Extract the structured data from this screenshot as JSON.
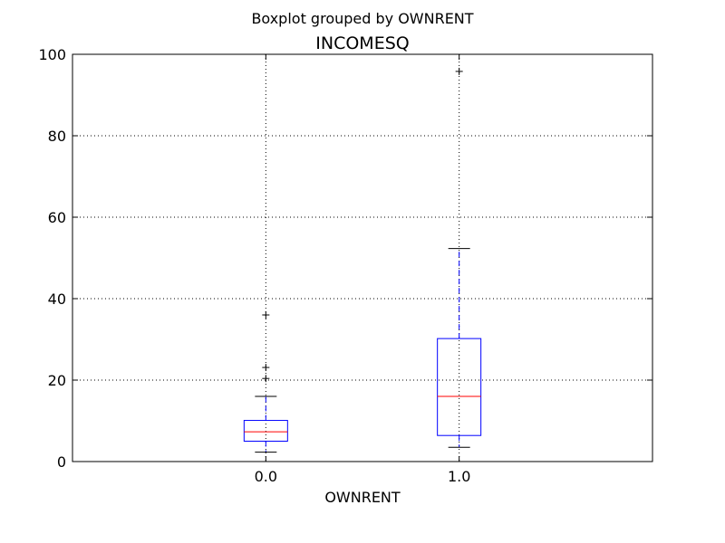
{
  "chart_data": {
    "type": "boxplot",
    "suptitle": "Boxplot grouped by OWNRENT",
    "title": "INCOMESQ",
    "xlabel": "OWNRENT",
    "ylabel": "",
    "ylim": [
      0,
      100
    ],
    "yticks": [
      0,
      20,
      40,
      60,
      80,
      100
    ],
    "grid": true,
    "categories": [
      "0.0",
      "1.0"
    ],
    "boxes": [
      {
        "category": "0.0",
        "whisker_low": 2.3,
        "q1": 5.0,
        "median": 7.3,
        "q3": 10.1,
        "whisker_high": 16.0,
        "outliers": [
          20.4,
          23.1,
          36.0
        ]
      },
      {
        "category": "1.0",
        "whisker_low": 3.5,
        "q1": 6.4,
        "median": 16.0,
        "q3": 30.2,
        "whisker_high": 52.3,
        "outliers": [
          95.8
        ]
      }
    ],
    "colors": {
      "box": "#0000ff",
      "median": "#ff0000",
      "whisker": "#0000ff",
      "cap": "#000000",
      "flier": "#000000",
      "grid": "#000000"
    }
  }
}
